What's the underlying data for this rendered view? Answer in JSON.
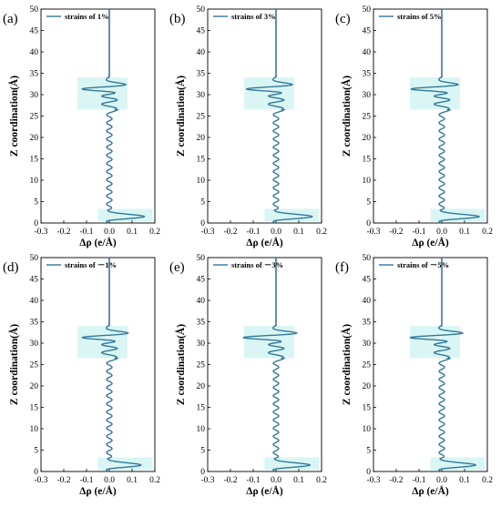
{
  "figure": {
    "xlabel": "Δρ (e/Å)",
    "ylabel": "Z coordination(Å)"
  },
  "colors": {
    "line": "#34789a",
    "highlight": "#c9f2ef",
    "interface": "#6a3fd0"
  },
  "chart_data": [
    {
      "panel": "(a)",
      "type": "line",
      "legend": "strains of 1%",
      "xlim": [
        -0.3,
        0.2
      ],
      "ylim": [
        0,
        50
      ],
      "xticks": [
        "-0.3",
        "-0.2",
        "-0.1",
        "0.0",
        "0.1",
        "0.2"
      ],
      "yticks": [
        "0",
        "5",
        "10",
        "15",
        "20",
        "25",
        "30",
        "35",
        "40",
        "45",
        "50"
      ],
      "features": {
        "top_peak": 0.08,
        "main_dip": -0.135,
        "lower_dip": -0.01,
        "bottom_peak": 0.155
      }
    },
    {
      "panel": "(b)",
      "type": "line",
      "legend": "strains of 3%",
      "xlim": [
        -0.3,
        0.2
      ],
      "ylim": [
        0,
        50
      ],
      "xticks": [
        "-0.3",
        "-0.2",
        "-0.1",
        "0.0",
        "0.1",
        "0.2"
      ],
      "yticks": [
        "0",
        "5",
        "10",
        "15",
        "20",
        "25",
        "30",
        "35",
        "40",
        "45",
        "50"
      ],
      "features": {
        "top_peak": 0.08,
        "main_dip": -0.145,
        "lower_dip": -0.01,
        "bottom_peak": 0.16
      }
    },
    {
      "panel": "(c)",
      "type": "line",
      "legend": "strains of 5%",
      "xlim": [
        -0.3,
        0.2
      ],
      "ylim": [
        0,
        50
      ],
      "xticks": [
        "-0.3",
        "-0.2",
        "-0.1",
        "0.0",
        "0.1",
        "0.2"
      ],
      "yticks": [
        "0",
        "5",
        "10",
        "15",
        "20",
        "25",
        "30",
        "35",
        "40",
        "45",
        "50"
      ],
      "features": {
        "top_peak": 0.08,
        "main_dip": -0.15,
        "lower_dip": -0.01,
        "bottom_peak": 0.165
      }
    },
    {
      "panel": "(d)",
      "type": "line",
      "legend": "strains of －1%",
      "xlim": [
        -0.3,
        0.2
      ],
      "ylim": [
        0,
        50
      ],
      "xticks": [
        "-0.3",
        "-0.2",
        "-0.1",
        "0.0",
        "0.1",
        "0.2"
      ],
      "yticks": [
        "0",
        "5",
        "10",
        "15",
        "20",
        "25",
        "30",
        "35",
        "40",
        "45",
        "50"
      ],
      "features": {
        "top_peak": 0.09,
        "main_dip": -0.135,
        "lower_dip": -0.01,
        "bottom_peak": 0.14
      }
    },
    {
      "panel": "(e)",
      "type": "line",
      "legend": "strains of －3%",
      "xlim": [
        -0.3,
        0.2
      ],
      "ylim": [
        0,
        50
      ],
      "xticks": [
        "-0.3",
        "-0.2",
        "-0.1",
        "0.0",
        "0.1",
        "0.2"
      ],
      "yticks": [
        "0",
        "5",
        "10",
        "15",
        "20",
        "25",
        "30",
        "35",
        "40",
        "45",
        "50"
      ],
      "features": {
        "top_peak": 0.1,
        "main_dip": -0.16,
        "lower_dip": -0.01,
        "bottom_peak": 0.15
      }
    },
    {
      "panel": "(f)",
      "type": "line",
      "legend": "strains of －5%",
      "xlim": [
        -0.3,
        0.2
      ],
      "ylim": [
        0,
        50
      ],
      "xticks": [
        "-0.3",
        "-0.2",
        "-0.1",
        "0.0",
        "0.1",
        "0.2"
      ],
      "yticks": [
        "0",
        "5",
        "10",
        "15",
        "20",
        "25",
        "30",
        "35",
        "40",
        "45",
        "50"
      ],
      "features": {
        "top_peak": 0.1,
        "main_dip": -0.155,
        "lower_dip": -0.01,
        "bottom_peak": 0.15
      }
    }
  ]
}
